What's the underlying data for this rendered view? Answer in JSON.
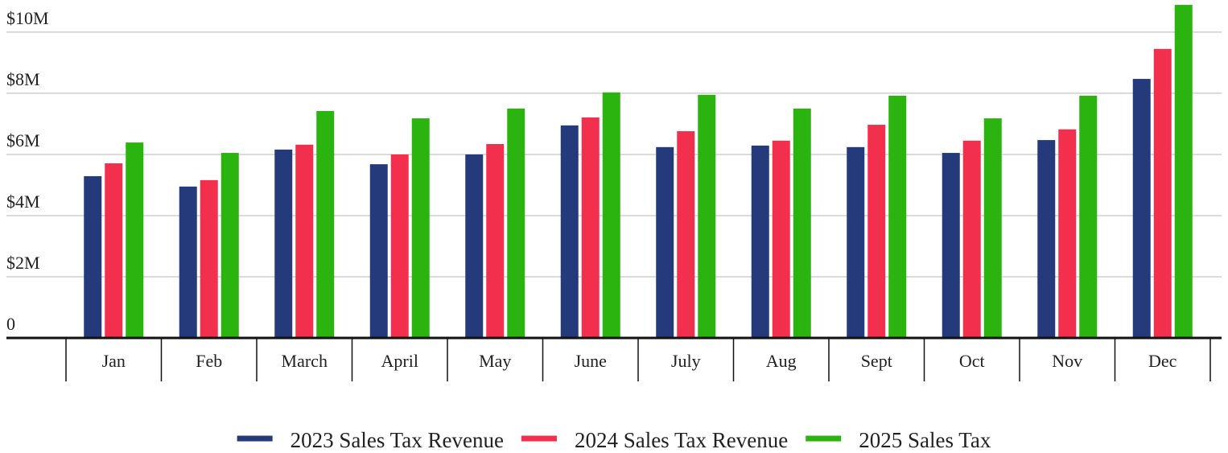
{
  "chart_data": {
    "type": "bar",
    "categories": [
      "Jan",
      "Feb",
      "March",
      "April",
      "May",
      "June",
      "July",
      "Aug",
      "Sept",
      "Oct",
      "Nov",
      "Dec"
    ],
    "series": [
      {
        "name": "2023 Sales Tax Revenue",
        "color": "#253a7a",
        "values": [
          5.29,
          4.95,
          6.16,
          5.68,
          6.0,
          6.95,
          6.24,
          6.29,
          6.24,
          6.05,
          6.47,
          8.47
        ]
      },
      {
        "name": "2024 Sales Tax Revenue",
        "color": "#f2304d",
        "values": [
          5.71,
          5.16,
          6.32,
          6.0,
          6.34,
          7.21,
          6.76,
          6.45,
          6.97,
          6.45,
          6.82,
          9.45
        ]
      },
      {
        "name": "2025 Sales Tax",
        "color": "#2bb30f",
        "values": [
          6.39,
          6.05,
          7.42,
          7.18,
          7.5,
          8.03,
          7.95,
          7.5,
          7.92,
          7.18,
          7.92,
          10.89
        ]
      }
    ],
    "ylim": [
      0,
      11.05
    ],
    "yticks": [
      0,
      {
        "value": 2,
        "label": "$2M"
      },
      {
        "value": 4,
        "label": "$4M"
      },
      {
        "value": 6,
        "label": "$6M"
      },
      {
        "value": 8,
        "label": "$8M"
      },
      {
        "value": 10,
        "label": "$10M"
      }
    ],
    "grid": true,
    "legend": "bottom"
  }
}
